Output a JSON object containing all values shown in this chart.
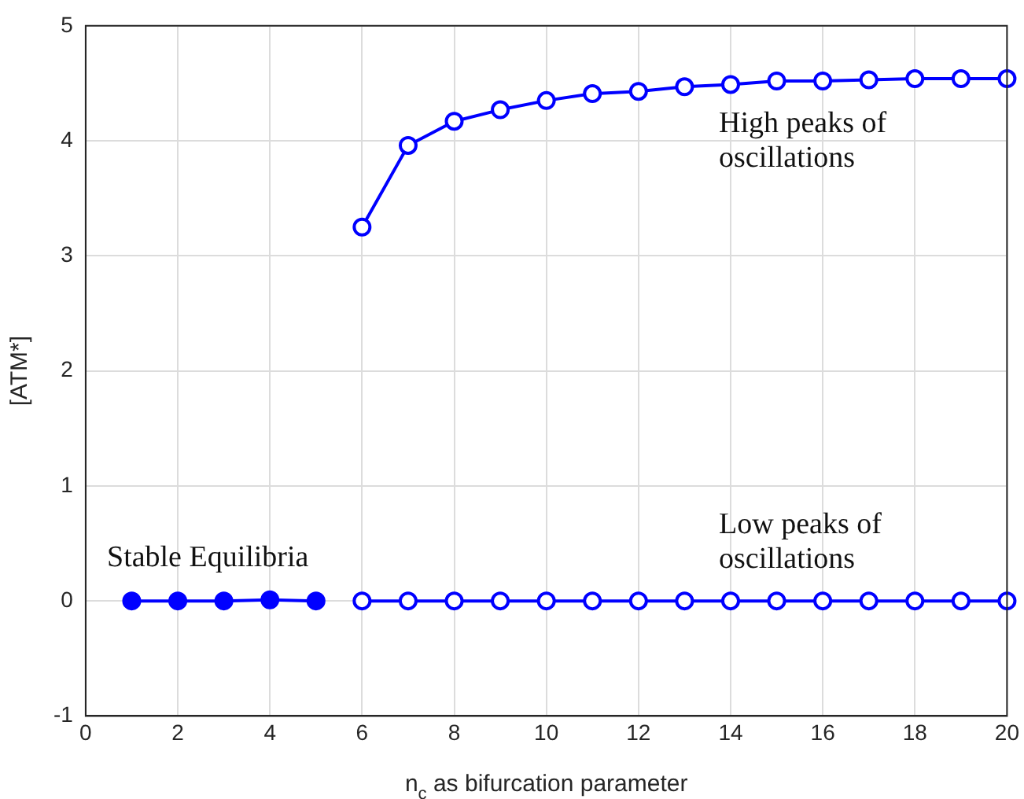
{
  "chart_data": {
    "type": "line",
    "xlabel": "n$_{c}$ as bifurcation parameter",
    "ylabel": "[ATM*]",
    "series": [
      {
        "color": "#0000ff",
        "marker": "circle",
        "x": [
          1,
          2,
          3,
          4,
          5
        ],
        "values": [
          0,
          0,
          0,
          0.01,
          0
        ]
      },
      {
        "color": "#0000ff",
        "marker": "circle",
        "x": [
          6,
          7,
          8,
          9,
          10,
          11,
          12,
          13,
          14,
          15,
          16,
          17,
          18,
          19,
          20
        ],
        "values": [
          3.25,
          3.96,
          4.17,
          4.27,
          4.35,
          4.41,
          4.43,
          4.47,
          4.49,
          4.52,
          4.52,
          4.53,
          4.54,
          4.54,
          4.54
        ]
      },
      {
        "color": "#0000ff",
        "marker": "circle",
        "x": [
          6,
          7,
          8,
          9,
          10,
          11,
          12,
          13,
          14,
          15,
          16,
          17,
          18,
          19,
          20
        ],
        "values": [
          0,
          0,
          0,
          0,
          0,
          0,
          0,
          0,
          0,
          0,
          0,
          0,
          0,
          0,
          0
        ]
      }
    ],
    "annotations": [
      "High peaks of\noscillations",
      "Low peaks of\noscillations",
      "Stable Equilibria"
    ],
    "xlim": [
      0,
      20
    ],
    "xticks": [
      0,
      2,
      4,
      6,
      8,
      10,
      12,
      14,
      16,
      18,
      20
    ],
    "ylim": [
      -1,
      5
    ],
    "yticks": [
      -1,
      0,
      1,
      2,
      3,
      4,
      5
    ],
    "grid": true,
    "legend": false
  }
}
